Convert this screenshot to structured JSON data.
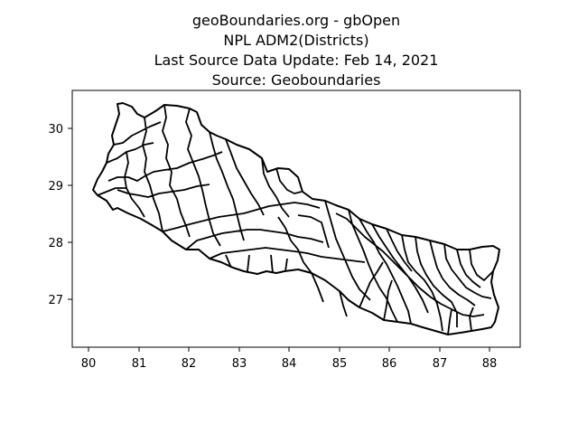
{
  "title": {
    "line1": "geoBoundaries.org - gbOpen",
    "line2": "NPL ADM2(Districts)",
    "line3": "Last Source Data Update: Feb 14, 2021",
    "line4": "Source: Geoboundaries"
  },
  "axes": {
    "x_range": [
      79.7,
      88.6
    ],
    "y_range": [
      26.15,
      30.65
    ],
    "x_ticks": [
      "80",
      "81",
      "82",
      "83",
      "84",
      "85",
      "86",
      "87",
      "88"
    ],
    "y_ticks": [
      "27",
      "28",
      "29",
      "30"
    ],
    "grid": false
  },
  "map": {
    "country": "Nepal",
    "admin_level": "ADM2",
    "line_color": "#000000",
    "fill_color": "#ffffff"
  }
}
